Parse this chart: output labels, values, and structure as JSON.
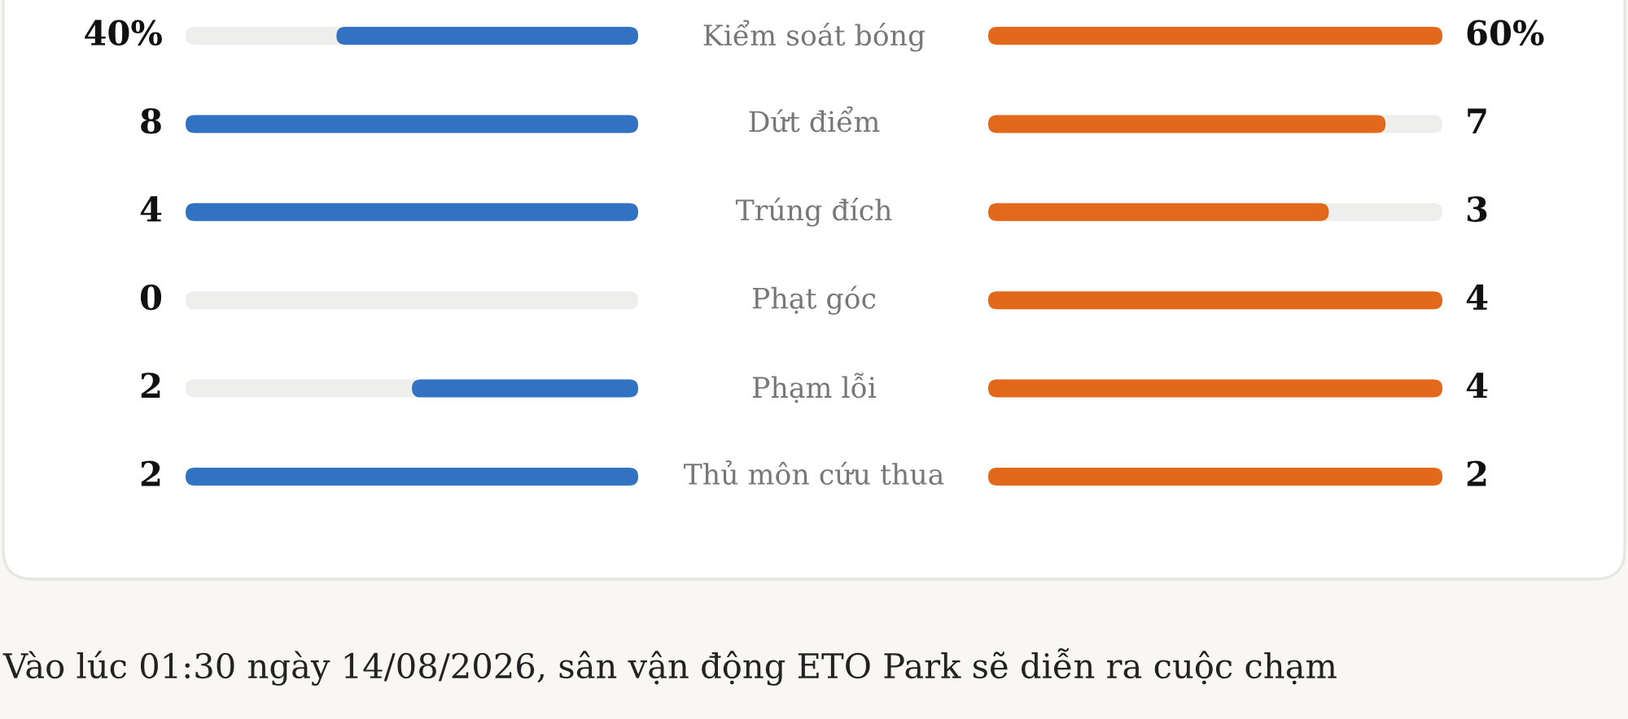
{
  "chart_data": {
    "type": "other",
    "categories": [
      "Kiểm soát bóng",
      "Dứt điểm",
      "Trúng đích",
      "Phạt góc",
      "Phạm lỗi",
      "Thủ môn cứu thua"
    ],
    "series": [
      {
        "color": "#3272c2",
        "values": [
          40,
          8,
          4,
          0,
          2,
          2
        ],
        "value_labels": [
          "40%",
          "8",
          "4",
          "0",
          "2",
          "2"
        ]
      },
      {
        "color": "#e2691c",
        "values": [
          60,
          7,
          3,
          4,
          4,
          2
        ],
        "value_labels": [
          "60%",
          "7",
          "3",
          "4",
          "4",
          "2"
        ]
      }
    ],
    "annotations": [
      "Vào lúc 01:30 ngày 14/08/2026, sân vận động ETO Park sẽ diễn ra cuộc chạm"
    ]
  }
}
